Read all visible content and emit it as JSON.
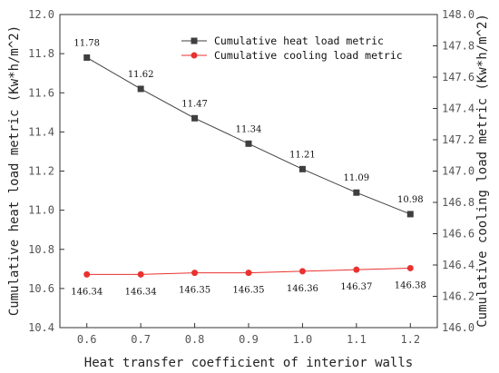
{
  "chart_data": {
    "type": "line",
    "xlabel": "Heat transfer coefficient of interior walls",
    "ylabel_left": "Cumulative heat load metric (Kw*h/m^2)",
    "ylabel_right": "Cumulative cooling load metric (Kw*h/m^2)",
    "x": [
      0.6,
      0.7,
      0.8,
      0.9,
      1.0,
      1.1,
      1.2
    ],
    "x_tick_labels": [
      "0.6",
      "0.7",
      "0.8",
      "0.9",
      "1.0",
      "1.1",
      "1.2"
    ],
    "xlim": [
      0.55,
      1.25
    ],
    "ylim_left": [
      10.4,
      12.0
    ],
    "ylim_right": [
      146.0,
      148.0
    ],
    "left_tick_labels": [
      "10.4",
      "10.6",
      "10.8",
      "11.0",
      "11.2",
      "11.4",
      "11.6",
      "11.8",
      "12.0"
    ],
    "right_tick_labels": [
      "146.0",
      "146.2",
      "146.4",
      "146.6",
      "146.8",
      "147.0",
      "147.2",
      "147.4",
      "147.6",
      "147.8",
      "148.0"
    ],
    "grid": false,
    "legend_position": "top-center",
    "series": [
      {
        "name": "Cumulative heat load metric",
        "axis": "left",
        "marker": "square",
        "color": "#3f3f3f",
        "values": [
          11.78,
          11.62,
          11.47,
          11.34,
          11.21,
          11.09,
          10.98
        ],
        "labels": [
          "11.78",
          "11.62",
          "11.47",
          "11.34",
          "11.21",
          "11.09",
          "10.98"
        ]
      },
      {
        "name": "Cumulative cooling load metric",
        "axis": "right",
        "marker": "circle",
        "color": "#e8322f",
        "values": [
          146.34,
          146.34,
          146.35,
          146.35,
          146.36,
          146.37,
          146.38
        ],
        "labels": [
          "146.34",
          "146.34",
          "146.35",
          "146.35",
          "146.36",
          "146.37",
          "146.38"
        ]
      }
    ]
  }
}
